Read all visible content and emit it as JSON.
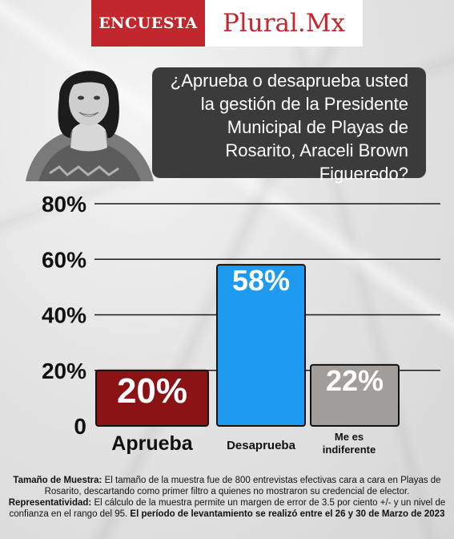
{
  "header": {
    "tag": "ENCUESTA",
    "brand": "Plural.Mx"
  },
  "question": "¿Aprueba o desaprueba usted la gestión de la Presidente Municipal de Playas de Rosarito, Araceli Brown Figueredo?",
  "chart_data": {
    "type": "bar",
    "categories": [
      "Aprueba",
      "Desaprueba",
      "Me es indiferente"
    ],
    "values": [
      20,
      58,
      22
    ],
    "value_labels": [
      "20%",
      "58%",
      "22%"
    ],
    "ylim": [
      0,
      80
    ],
    "yticks": [
      0,
      20,
      40,
      60,
      80
    ],
    "ytick_labels": [
      "0",
      "20%",
      "40%",
      "60%",
      "80%"
    ],
    "grid": true,
    "colors": [
      "#8b1215",
      "#1e9bf0",
      "#a19d9b"
    ]
  },
  "footnote": {
    "sample_label": "Tamaño de Muestra:",
    "sample_text": "El tamaño de la muestra fue de 800 entrevistas efectivas cara a cara en Playas de Rosarito, descartando como primer filtro a quienes no mostraron su credencial de elector.",
    "rep_label": "Representatividad:",
    "rep_text": "El cálculo de la muestra permite un margen de error de 3.5 por ciento +/- y un nivel de confianza en el rango del 95.",
    "period_text": "El período de levantamiento se realizó entre el 26 y 30 de Marzo de 2023"
  }
}
